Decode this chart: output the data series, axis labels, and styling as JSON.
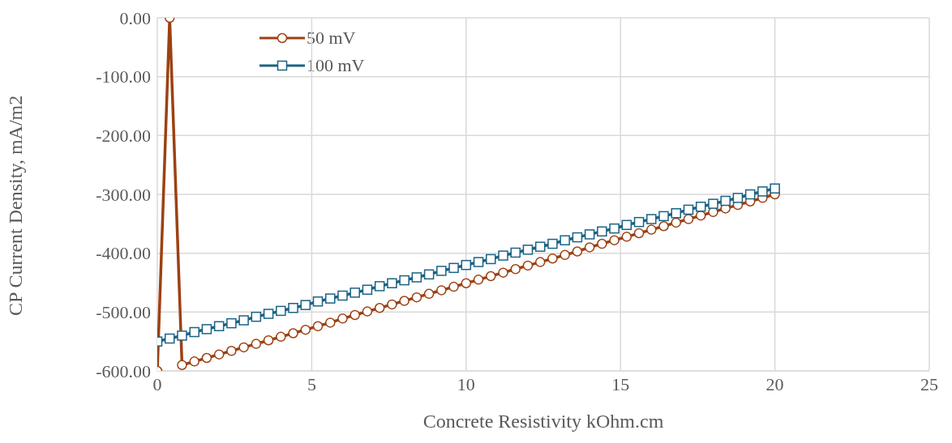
{
  "chart_data": {
    "type": "line",
    "xlabel": "Concrete Resistivity  kOhm.cm",
    "ylabel": "CP Current Density, mA/m2",
    "x": [
      0,
      0.4,
      0.8,
      1.2,
      1.6,
      2,
      2.4,
      2.8,
      3.2,
      3.6,
      4,
      4.4,
      4.8,
      5.2,
      5.6,
      6,
      6.4,
      6.8,
      7.2,
      7.6,
      8,
      8.4,
      8.8,
      9.2,
      9.6,
      10,
      10.4,
      10.8,
      11.2,
      11.6,
      12,
      12.4,
      12.8,
      13.2,
      13.6,
      14,
      14.4,
      14.8,
      15.2,
      15.6,
      16,
      16.4,
      16.8,
      17.2,
      17.6,
      18,
      18.4,
      18.8,
      19.2,
      19.6,
      20
    ],
    "series": [
      {
        "name": "50 mV",
        "color": "#9c4112",
        "marker": "circle",
        "values": [
          -600,
          0,
          -590,
          -584,
          -578,
          -572,
          -566,
          -560,
          -554,
          -548,
          -542,
          -536,
          -530,
          -524,
          -518,
          -511,
          -505,
          -499,
          -493,
          -487,
          -481,
          -475,
          -469,
          -463,
          -457,
          -451,
          -445,
          -439,
          -433,
          -427,
          -421,
          -415,
          -409,
          -403,
          -397,
          -390,
          -384,
          -378,
          -372,
          -366,
          -360,
          -354,
          -348,
          -342,
          -336,
          -330,
          -324,
          -318,
          -312,
          -306,
          -300
        ]
      },
      {
        "name": "100 mV",
        "color": "#1b6384",
        "marker": "square",
        "values": [
          -550,
          -545,
          -540,
          -534,
          -529,
          -524,
          -519,
          -514,
          -508,
          -503,
          -498,
          -493,
          -488,
          -482,
          -477,
          -472,
          -467,
          -462,
          -456,
          -451,
          -446,
          -441,
          -436,
          -430,
          -425,
          -420,
          -415,
          -410,
          -404,
          -399,
          -394,
          -389,
          -384,
          -378,
          -373,
          -368,
          -363,
          -358,
          -352,
          -347,
          -342,
          -337,
          -332,
          -326,
          -321,
          -316,
          -311,
          -306,
          -300,
          -295,
          -290
        ]
      }
    ],
    "xlim": [
      0,
      25
    ],
    "xticks": [
      0,
      5,
      10,
      15,
      20,
      25
    ],
    "ylim": [
      -600,
      0
    ],
    "yticks": [
      {
        "value": -600,
        "label": "-600.00"
      },
      {
        "value": -500,
        "label": "-500.00"
      },
      {
        "value": -400,
        "label": "-400.00"
      },
      {
        "value": -300,
        "label": "-300.00"
      },
      {
        "value": -200,
        "label": "-200.00"
      },
      {
        "value": -100,
        "label": "-100.00"
      },
      {
        "value": 0,
        "label": "0.00"
      }
    ],
    "grid": true,
    "legend": "top left",
    "line_style": "solid"
  }
}
